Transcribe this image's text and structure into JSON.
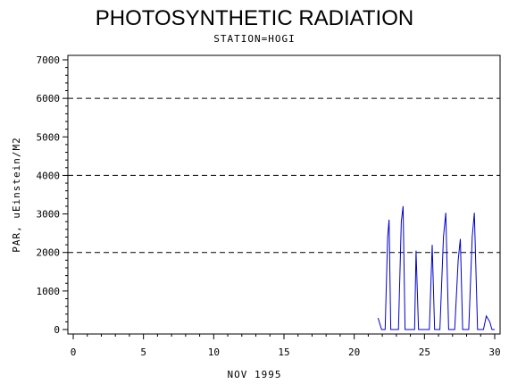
{
  "chart_data": {
    "type": "line",
    "title": "PHOTOSYNTHETIC RADIATION",
    "subtitle": "STATION=HOGI",
    "xlabel": "NOV 1995",
    "ylabel": "PAR, uEinstein/M2",
    "xlim": [
      0,
      30
    ],
    "ylim": [
      0,
      7000
    ],
    "x_ticks": [
      0,
      5,
      10,
      15,
      20,
      25,
      30
    ],
    "x_tick_labels": [
      "0",
      "5",
      "10",
      "15",
      "20",
      "25",
      "30"
    ],
    "y_ticks": [
      0,
      1000,
      2000,
      3000,
      4000,
      5000,
      6000,
      7000
    ],
    "y_tick_labels": [
      "0",
      "1000",
      "2000",
      "3000",
      "4000",
      "5000",
      "6000",
      "7000"
    ],
    "gridlines_y": [
      2000,
      4000,
      6000
    ],
    "grid_style": "dashed horizontal",
    "line_color": "#0000cc",
    "series": [
      {
        "values": [
          [
            21.7,
            300
          ],
          [
            21.95,
            0
          ],
          [
            22.2,
            0
          ],
          [
            22.38,
            2400
          ],
          [
            22.48,
            2850
          ],
          [
            22.6,
            0
          ],
          [
            22.9,
            0
          ],
          [
            23.15,
            0
          ],
          [
            23.35,
            2800
          ],
          [
            23.48,
            3200
          ],
          [
            23.62,
            0
          ],
          [
            24.0,
            0
          ],
          [
            24.3,
            0
          ],
          [
            24.4,
            2050
          ],
          [
            24.58,
            0
          ],
          [
            24.9,
            0
          ],
          [
            25.35,
            0
          ],
          [
            25.55,
            2200
          ],
          [
            25.72,
            0
          ],
          [
            26.1,
            0
          ],
          [
            26.35,
            2400
          ],
          [
            26.52,
            3030
          ],
          [
            26.72,
            0
          ],
          [
            27.15,
            0
          ],
          [
            27.4,
            1800
          ],
          [
            27.55,
            2350
          ],
          [
            27.72,
            0
          ],
          [
            28.15,
            0
          ],
          [
            28.4,
            2400
          ],
          [
            28.55,
            3030
          ],
          [
            28.78,
            0
          ],
          [
            29.2,
            0
          ],
          [
            29.4,
            350
          ],
          [
            29.65,
            200
          ],
          [
            29.8,
            0
          ],
          [
            30.0,
            0
          ]
        ]
      }
    ]
  }
}
